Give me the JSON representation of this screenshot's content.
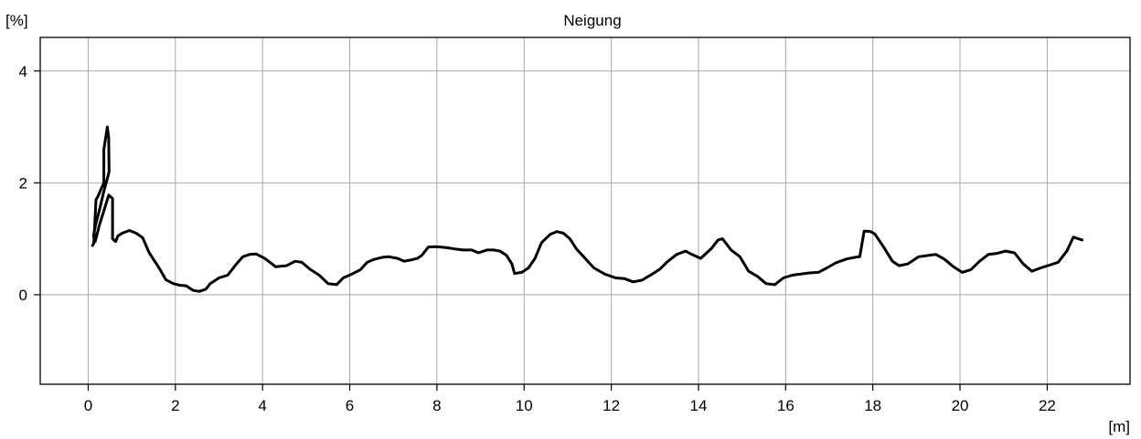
{
  "chart_data": {
    "type": "line",
    "title": "Neigung",
    "ylabel": "[%]",
    "xlabel": "[m]",
    "xlim": [
      -1.1,
      23.9
    ],
    "ylim": [
      -1.6,
      4.6
    ],
    "grid": true,
    "x_ticks": [
      0,
      2,
      4,
      6,
      8,
      10,
      12,
      14,
      16,
      18,
      20,
      22
    ],
    "y_ticks": [
      0,
      2,
      4
    ],
    "series": [
      {
        "color": "#000000",
        "points": [
          [
            0.1,
            0.88
          ],
          [
            0.13,
            0.92
          ],
          [
            0.18,
            1.7
          ],
          [
            0.22,
            1.75
          ],
          [
            0.3,
            1.9
          ],
          [
            0.36,
            2.0
          ],
          [
            0.36,
            2.6
          ],
          [
            0.41,
            2.85
          ],
          [
            0.44,
            3.0
          ],
          [
            0.47,
            2.8
          ],
          [
            0.48,
            2.2
          ],
          [
            0.43,
            2.05
          ],
          [
            0.36,
            1.85
          ],
          [
            0.27,
            1.55
          ],
          [
            0.17,
            1.25
          ],
          [
            0.12,
            1.05
          ],
          [
            0.16,
            0.95
          ],
          [
            0.26,
            1.25
          ],
          [
            0.36,
            1.5
          ],
          [
            0.47,
            1.78
          ],
          [
            0.56,
            1.72
          ],
          [
            0.56,
            1.0
          ],
          [
            0.63,
            0.95
          ],
          [
            0.68,
            1.05
          ],
          [
            0.78,
            1.1
          ],
          [
            0.95,
            1.15
          ],
          [
            1.1,
            1.1
          ],
          [
            1.25,
            1.02
          ],
          [
            1.4,
            0.75
          ],
          [
            1.55,
            0.57
          ],
          [
            1.65,
            0.45
          ],
          [
            1.78,
            0.27
          ],
          [
            1.95,
            0.2
          ],
          [
            2.1,
            0.17
          ],
          [
            2.25,
            0.16
          ],
          [
            2.4,
            0.08
          ],
          [
            2.55,
            0.06
          ],
          [
            2.7,
            0.1
          ],
          [
            2.8,
            0.2
          ],
          [
            3.0,
            0.3
          ],
          [
            3.2,
            0.35
          ],
          [
            3.4,
            0.55
          ],
          [
            3.55,
            0.68
          ],
          [
            3.7,
            0.72
          ],
          [
            3.85,
            0.73
          ],
          [
            4.05,
            0.65
          ],
          [
            4.3,
            0.5
          ],
          [
            4.55,
            0.52
          ],
          [
            4.75,
            0.6
          ],
          [
            4.9,
            0.58
          ],
          [
            5.1,
            0.45
          ],
          [
            5.3,
            0.35
          ],
          [
            5.5,
            0.2
          ],
          [
            5.7,
            0.18
          ],
          [
            5.85,
            0.3
          ],
          [
            6.05,
            0.37
          ],
          [
            6.25,
            0.45
          ],
          [
            6.4,
            0.58
          ],
          [
            6.55,
            0.63
          ],
          [
            6.75,
            0.67
          ],
          [
            6.9,
            0.68
          ],
          [
            7.1,
            0.65
          ],
          [
            7.25,
            0.6
          ],
          [
            7.4,
            0.62
          ],
          [
            7.55,
            0.65
          ],
          [
            7.65,
            0.7
          ],
          [
            7.8,
            0.85
          ],
          [
            7.95,
            0.86
          ],
          [
            8.1,
            0.85
          ],
          [
            8.25,
            0.84
          ],
          [
            8.4,
            0.82
          ],
          [
            8.6,
            0.8
          ],
          [
            8.8,
            0.8
          ],
          [
            8.95,
            0.75
          ],
          [
            9.15,
            0.8
          ],
          [
            9.3,
            0.8
          ],
          [
            9.45,
            0.78
          ],
          [
            9.6,
            0.7
          ],
          [
            9.72,
            0.55
          ],
          [
            9.78,
            0.38
          ],
          [
            9.95,
            0.4
          ],
          [
            10.1,
            0.48
          ],
          [
            10.25,
            0.65
          ],
          [
            10.4,
            0.93
          ],
          [
            10.6,
            1.08
          ],
          [
            10.75,
            1.13
          ],
          [
            10.9,
            1.1
          ],
          [
            11.05,
            1.0
          ],
          [
            11.2,
            0.82
          ],
          [
            11.4,
            0.65
          ],
          [
            11.6,
            0.48
          ],
          [
            11.85,
            0.37
          ],
          [
            12.1,
            0.3
          ],
          [
            12.3,
            0.29
          ],
          [
            12.5,
            0.23
          ],
          [
            12.7,
            0.26
          ],
          [
            12.9,
            0.35
          ],
          [
            13.1,
            0.45
          ],
          [
            13.3,
            0.6
          ],
          [
            13.5,
            0.72
          ],
          [
            13.7,
            0.78
          ],
          [
            13.85,
            0.72
          ],
          [
            14.05,
            0.65
          ],
          [
            14.3,
            0.83
          ],
          [
            14.45,
            0.98
          ],
          [
            14.55,
            1.0
          ],
          [
            14.75,
            0.8
          ],
          [
            14.95,
            0.68
          ],
          [
            15.15,
            0.42
          ],
          [
            15.35,
            0.33
          ],
          [
            15.55,
            0.2
          ],
          [
            15.75,
            0.18
          ],
          [
            15.95,
            0.3
          ],
          [
            16.15,
            0.35
          ],
          [
            16.35,
            0.37
          ],
          [
            16.55,
            0.39
          ],
          [
            16.75,
            0.4
          ],
          [
            16.95,
            0.48
          ],
          [
            17.15,
            0.57
          ],
          [
            17.4,
            0.64
          ],
          [
            17.6,
            0.67
          ],
          [
            17.7,
            0.68
          ],
          [
            17.8,
            1.14
          ],
          [
            17.95,
            1.13
          ],
          [
            18.05,
            1.08
          ],
          [
            18.25,
            0.85
          ],
          [
            18.45,
            0.6
          ],
          [
            18.6,
            0.52
          ],
          [
            18.8,
            0.55
          ],
          [
            19.05,
            0.68
          ],
          [
            19.25,
            0.7
          ],
          [
            19.45,
            0.72
          ],
          [
            19.65,
            0.63
          ],
          [
            19.85,
            0.5
          ],
          [
            20.05,
            0.4
          ],
          [
            20.25,
            0.45
          ],
          [
            20.45,
            0.6
          ],
          [
            20.65,
            0.72
          ],
          [
            20.85,
            0.74
          ],
          [
            21.05,
            0.78
          ],
          [
            21.25,
            0.75
          ],
          [
            21.45,
            0.55
          ],
          [
            21.65,
            0.42
          ],
          [
            21.85,
            0.48
          ],
          [
            22.05,
            0.53
          ],
          [
            22.25,
            0.58
          ],
          [
            22.45,
            0.78
          ],
          [
            22.6,
            1.03
          ],
          [
            22.8,
            0.98
          ]
        ]
      }
    ]
  }
}
